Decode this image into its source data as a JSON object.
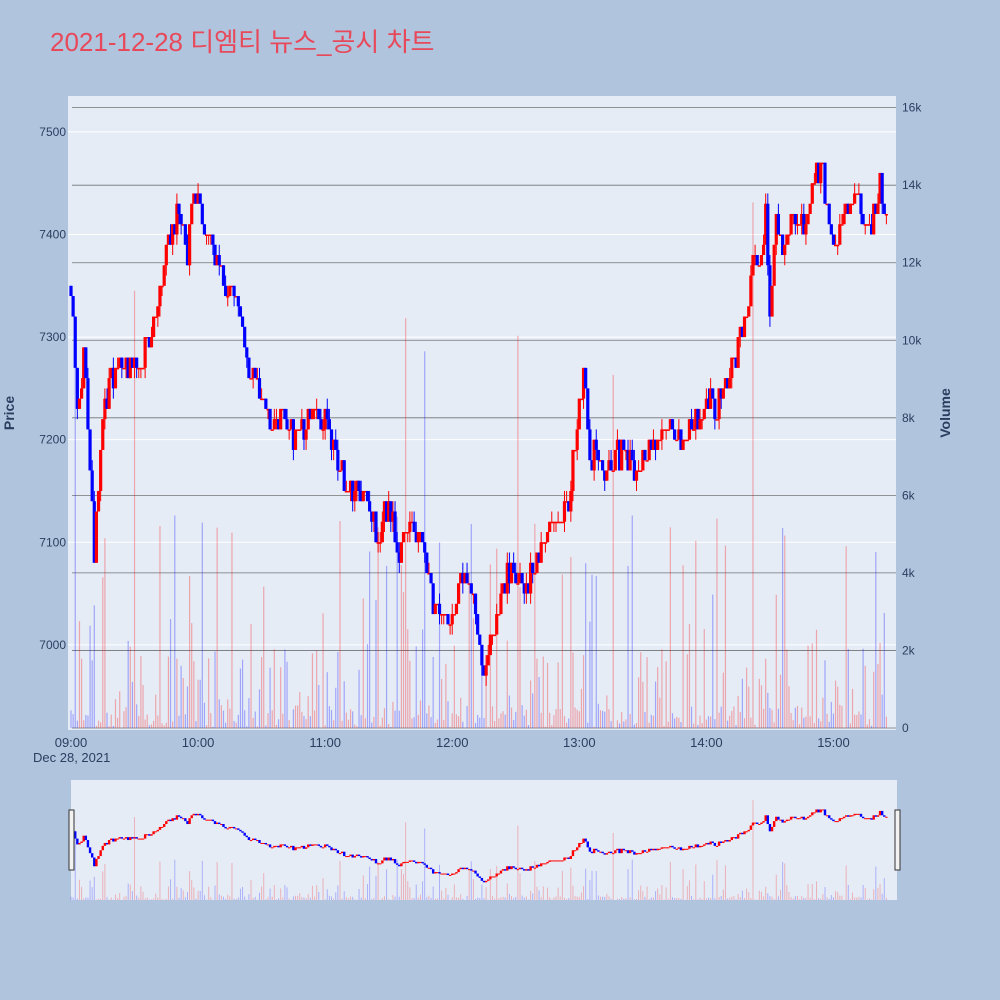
{
  "chart_data": {
    "type": "candlestick",
    "title": "2021-12-28 디엠티 뉴스_공시 차트",
    "ylabel": "Price",
    "y2label": "Volume",
    "ylim": [
      6917,
      7535
    ],
    "y2lim": [
      0,
      16300
    ],
    "y_ticks": [
      7000,
      7100,
      7200,
      7300,
      7400,
      7500
    ],
    "y2_ticks": [
      0,
      2000,
      4000,
      6000,
      8000,
      10000,
      12000,
      14000,
      16000
    ],
    "y2_tick_labels": [
      "0",
      "2k",
      "4k",
      "6k",
      "8k",
      "10k",
      "12k",
      "14k",
      "16k"
    ],
    "x_ticks": [
      "09:00",
      "10:00",
      "11:00",
      "12:00",
      "13:00",
      "14:00",
      "15:00"
    ],
    "x_sublabel": "Dec 28, 2021",
    "time_range": [
      "09:00",
      "15:30"
    ],
    "up_color": "#ff0000",
    "down_color": "#0000ff",
    "price_path": [
      [
        "09:00",
        7350
      ],
      [
        "09:03",
        7230
      ],
      [
        "09:06",
        7280
      ],
      [
        "09:09",
        7180
      ],
      [
        "09:11",
        7085
      ],
      [
        "09:15",
        7230
      ],
      [
        "09:20",
        7260
      ],
      [
        "09:25",
        7270
      ],
      [
        "09:33",
        7280
      ],
      [
        "09:40",
        7310
      ],
      [
        "09:45",
        7380
      ],
      [
        "09:50",
        7420
      ],
      [
        "09:55",
        7380
      ],
      [
        "09:58",
        7440
      ],
      [
        "10:02",
        7420
      ],
      [
        "10:06",
        7400
      ],
      [
        "10:10",
        7360
      ],
      [
        "10:14",
        7340
      ],
      [
        "10:18",
        7350
      ],
      [
        "10:22",
        7280
      ],
      [
        "10:26",
        7260
      ],
      [
        "10:30",
        7240
      ],
      [
        "10:35",
        7210
      ],
      [
        "10:40",
        7230
      ],
      [
        "10:45",
        7200
      ],
      [
        "10:55",
        7230
      ],
      [
        "11:00",
        7220
      ],
      [
        "11:05",
        7180
      ],
      [
        "11:10",
        7160
      ],
      [
        "11:15",
        7150
      ],
      [
        "11:20",
        7130
      ],
      [
        "11:25",
        7100
      ],
      [
        "11:30",
        7140
      ],
      [
        "11:35",
        7090
      ],
      [
        "11:40",
        7120
      ],
      [
        "11:45",
        7110
      ],
      [
        "11:50",
        7050
      ],
      [
        "11:55",
        7020
      ],
      [
        "12:00",
        7030
      ],
      [
        "12:05",
        7070
      ],
      [
        "12:10",
        7050
      ],
      [
        "12:15",
        6980
      ],
      [
        "12:20",
        7010
      ],
      [
        "12:25",
        7060
      ],
      [
        "12:30",
        7070
      ],
      [
        "12:35",
        7060
      ],
      [
        "12:40",
        7080
      ],
      [
        "12:45",
        7110
      ],
      [
        "12:50",
        7120
      ],
      [
        "12:55",
        7140
      ],
      [
        "13:00",
        7230
      ],
      [
        "13:02",
        7270
      ],
      [
        "13:05",
        7170
      ],
      [
        "13:08",
        7190
      ],
      [
        "13:12",
        7160
      ],
      [
        "13:16",
        7180
      ],
      [
        "13:20",
        7190
      ],
      [
        "13:25",
        7170
      ],
      [
        "13:30",
        7180
      ],
      [
        "13:35",
        7200
      ],
      [
        "13:40",
        7215
      ],
      [
        "13:45",
        7210
      ],
      [
        "13:50",
        7200
      ],
      [
        "13:55",
        7220
      ],
      [
        "14:00",
        7240
      ],
      [
        "14:05",
        7230
      ],
      [
        "14:10",
        7260
      ],
      [
        "14:15",
        7290
      ],
      [
        "14:20",
        7320
      ],
      [
        "14:22",
        7390
      ],
      [
        "14:25",
        7360
      ],
      [
        "14:28",
        7420
      ],
      [
        "14:30",
        7330
      ],
      [
        "14:33",
        7410
      ],
      [
        "14:36",
        7370
      ],
      [
        "14:40",
        7420
      ],
      [
        "14:45",
        7410
      ],
      [
        "14:50",
        7450
      ],
      [
        "14:55",
        7460
      ],
      [
        "15:00",
        7380
      ],
      [
        "15:05",
        7420
      ],
      [
        "15:10",
        7440
      ],
      [
        "15:14",
        7420
      ],
      [
        "15:18",
        7410
      ],
      [
        "15:22",
        7450
      ],
      [
        "15:25",
        7430
      ]
    ]
  }
}
